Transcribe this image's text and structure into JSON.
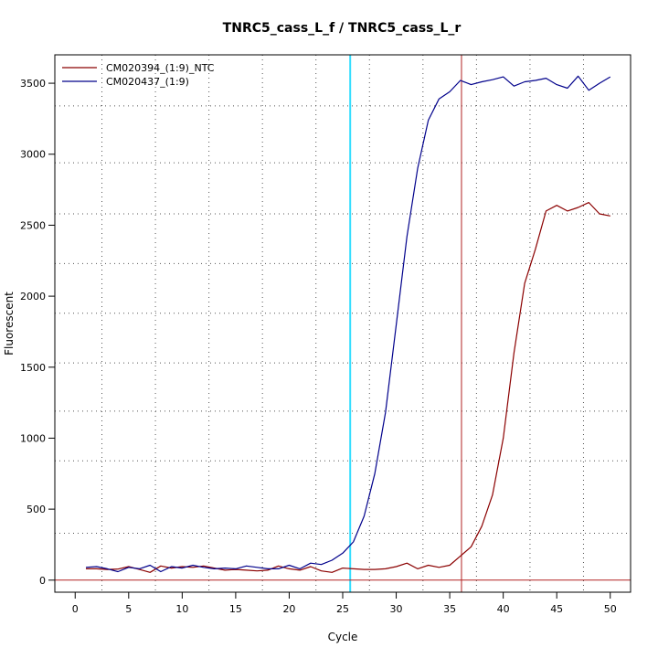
{
  "chart_data": {
    "type": "line",
    "title": "TNRC5_cass_L_f / TNRC5_cass_L_r",
    "xlabel": "Cycle",
    "ylabel": "Fluorescent",
    "xlim": [
      -1.9,
      51.9
    ],
    "ylim": [
      -85,
      3700
    ],
    "x_ticks": [
      0,
      5,
      10,
      15,
      20,
      25,
      30,
      35,
      40,
      45,
      50
    ],
    "y_ticks": [
      0,
      500,
      1000,
      1500,
      2000,
      2500,
      3000,
      3500
    ],
    "grid": {
      "vertical": [
        2.5,
        7.5,
        12.5,
        17.5,
        22.5,
        27.5,
        32.5,
        37.5,
        42.5,
        47.5
      ],
      "horizontal": [
        330,
        840,
        1190,
        1530,
        1880,
        2230,
        2580,
        2940,
        3340
      ]
    },
    "legend_position": "top-left",
    "threshold_lines": [
      {
        "axis": "x",
        "value": 25.7,
        "color": "#33ddff"
      },
      {
        "axis": "x",
        "value": 36.1,
        "color": "#b22222"
      },
      {
        "axis": "y",
        "value": 0,
        "color": "#b22222"
      }
    ],
    "x": [
      1,
      2,
      3,
      4,
      5,
      6,
      7,
      8,
      9,
      10,
      11,
      12,
      13,
      14,
      15,
      16,
      17,
      18,
      19,
      20,
      21,
      22,
      23,
      24,
      25,
      26,
      27,
      28,
      29,
      30,
      31,
      32,
      33,
      34,
      35,
      36,
      37,
      38,
      39,
      40,
      41,
      42,
      43,
      44,
      45,
      46,
      47,
      48,
      49,
      50
    ],
    "series": [
      {
        "name": "CM020394_(1:9)_NTC",
        "color": "#8b0000",
        "values": [
          80,
          80,
          75,
          78,
          95,
          75,
          55,
          100,
          85,
          95,
          90,
          100,
          85,
          70,
          75,
          70,
          65,
          70,
          100,
          80,
          70,
          95,
          65,
          55,
          85,
          80,
          75,
          75,
          80,
          95,
          120,
          80,
          105,
          90,
          105,
          170,
          235,
          380,
          600,
          1000,
          1600,
          2090,
          2330,
          2600,
          2640,
          2600,
          2625,
          2660,
          2580,
          2565
        ]
      },
      {
        "name": "CM020437_(1:9)",
        "color": "#00008b",
        "values": [
          90,
          95,
          80,
          60,
          90,
          80,
          105,
          60,
          95,
          85,
          105,
          90,
          80,
          85,
          80,
          100,
          90,
          80,
          80,
          105,
          80,
          120,
          110,
          140,
          190,
          270,
          450,
          750,
          1180,
          1800,
          2420,
          2900,
          3240,
          3390,
          3440,
          3520,
          3490,
          3510,
          3525,
          3545,
          3480,
          3510,
          3520,
          3535,
          3490,
          3465,
          3550,
          3450,
          3500,
          3545
        ]
      }
    ]
  }
}
